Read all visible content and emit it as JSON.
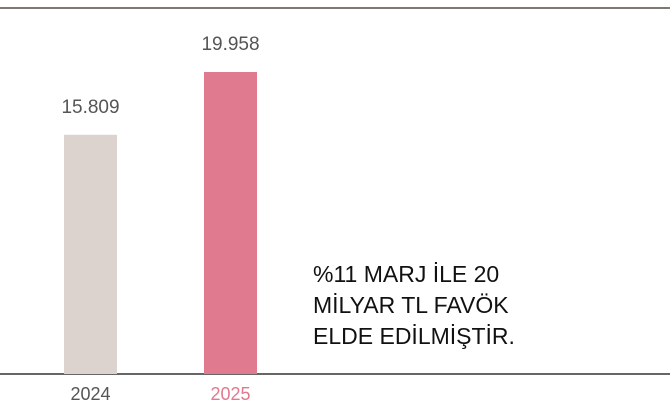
{
  "chart_data": {
    "type": "bar",
    "categories": [
      "2024",
      "2025"
    ],
    "values": [
      15809,
      19958
    ],
    "value_labels": [
      "15.809",
      "19.958"
    ],
    "colors": [
      "#dcd3ce",
      "#e07a8e"
    ],
    "category_label_colors": [
      "#555555",
      "#e07a8e"
    ],
    "annotation": [
      "%11 MARJ İLE 20",
      "MİLYAR TL FAVÖK",
      "ELDE EDİLMİŞTİR."
    ]
  }
}
